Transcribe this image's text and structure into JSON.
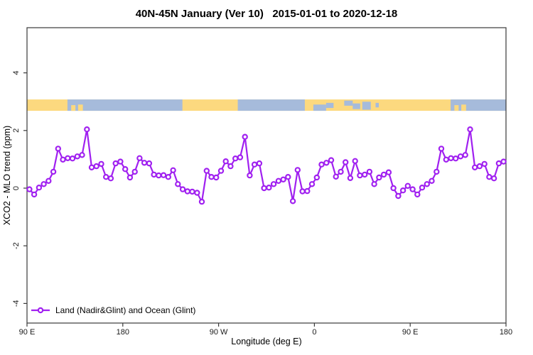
{
  "chart_data": {
    "type": "line",
    "title": "40N-45N January (Ver 10)   2015-01-01 to 2020-12-18",
    "xlabel": "Longitude (deg E)",
    "ylabel": "XCO2 - MLO trend (ppm)",
    "x_domain": [
      90,
      540
    ],
    "ylim": [
      -4.7,
      5.6
    ],
    "x_ticks": [
      {
        "lon": 90,
        "label": "90 E"
      },
      {
        "lon": 180,
        "label": "180"
      },
      {
        "lon": 270,
        "label": "90 W"
      },
      {
        "lon": 360,
        "label": "0"
      },
      {
        "lon": 450,
        "label": "90 E"
      },
      {
        "lon": 540,
        "label": "180"
      }
    ],
    "y_ticks": [
      {
        "value": 4,
        "label": "4"
      },
      {
        "value": 2,
        "label": "2"
      },
      {
        "value": 0,
        "label": "0"
      },
      {
        "value": -2,
        "label": "-2"
      },
      {
        "value": -4,
        "label": "-4"
      }
    ],
    "grid": false,
    "legend_position": "bottom-left",
    "x_start": 92.25,
    "x_step": 4.5,
    "n_points": 100,
    "series": [
      {
        "name": "Land (Nadir&Glint) and Ocean (Glint)",
        "color": "#A020F0",
        "marker": "open-circle",
        "values": [
          -0.04,
          -0.22,
          0.02,
          0.14,
          0.25,
          0.57,
          1.37,
          0.99,
          1.04,
          1.03,
          1.1,
          1.15,
          2.04,
          0.72,
          0.76,
          0.84,
          0.39,
          0.34,
          0.86,
          0.92,
          0.66,
          0.37,
          0.57,
          1.04,
          0.88,
          0.86,
          0.47,
          0.44,
          0.45,
          0.39,
          0.62,
          0.14,
          -0.04,
          -0.11,
          -0.12,
          -0.16,
          -0.47,
          0.6,
          0.39,
          0.37,
          0.6,
          0.93,
          0.76,
          1.03,
          1.07,
          1.78,
          0.44,
          0.82,
          0.86,
          0.0,
          0.02,
          0.14,
          0.25,
          0.3,
          0.39,
          -0.45,
          0.63,
          -0.11,
          -0.1,
          0.14,
          0.37,
          0.82,
          0.88,
          0.97,
          0.4,
          0.57,
          0.9,
          0.35,
          0.94,
          0.44,
          0.47,
          0.57,
          0.14,
          0.37,
          0.47,
          0.55,
          0.0,
          -0.27,
          -0.08,
          0.08,
          -0.04,
          -0.22,
          0.02,
          0.14,
          0.25,
          0.57,
          1.37,
          0.99,
          1.04,
          1.03,
          1.1,
          1.15,
          2.04,
          0.72,
          0.76,
          0.84,
          0.39,
          0.34,
          0.86,
          0.92
        ]
      }
    ],
    "land_ocean_band": {
      "plotted_at_y": 2.88,
      "land_color": "#FCD97F",
      "ocean_color": "#A6BBDB",
      "base": "land",
      "overlays": [
        {
          "from": 128,
          "to": 236,
          "color": "ocean",
          "top": 0,
          "bottom": 1
        },
        {
          "from": 131.5,
          "to": 135.5,
          "color": "land",
          "top": 0.5,
          "bottom": 1
        },
        {
          "from": 138,
          "to": 142.5,
          "color": "land",
          "top": 0.45,
          "bottom": 1
        },
        {
          "from": 288,
          "to": 351,
          "color": "ocean",
          "top": 0,
          "bottom": 1
        },
        {
          "from": 359,
          "to": 371,
          "color": "ocean",
          "top": 0.45,
          "bottom": 1
        },
        {
          "from": 371,
          "to": 378,
          "color": "ocean",
          "top": 0.3,
          "bottom": 0.75
        },
        {
          "from": 388,
          "to": 396,
          "color": "ocean",
          "top": 0.1,
          "bottom": 0.55
        },
        {
          "from": 396,
          "to": 403,
          "color": "ocean",
          "top": 0.35,
          "bottom": 0.85
        },
        {
          "from": 405,
          "to": 413,
          "color": "ocean",
          "top": 0.2,
          "bottom": 0.9
        },
        {
          "from": 417.5,
          "to": 420.5,
          "color": "ocean",
          "top": 0.3,
          "bottom": 0.7
        },
        {
          "from": 488,
          "to": 540,
          "color": "ocean",
          "top": 0,
          "bottom": 1
        },
        {
          "from": 491.5,
          "to": 495.5,
          "color": "land",
          "top": 0.5,
          "bottom": 1
        },
        {
          "from": 498,
          "to": 502.5,
          "color": "land",
          "top": 0.45,
          "bottom": 1
        }
      ]
    },
    "axis_color": "#3a3a3a",
    "tick_label_color": "#1a1a1a"
  }
}
